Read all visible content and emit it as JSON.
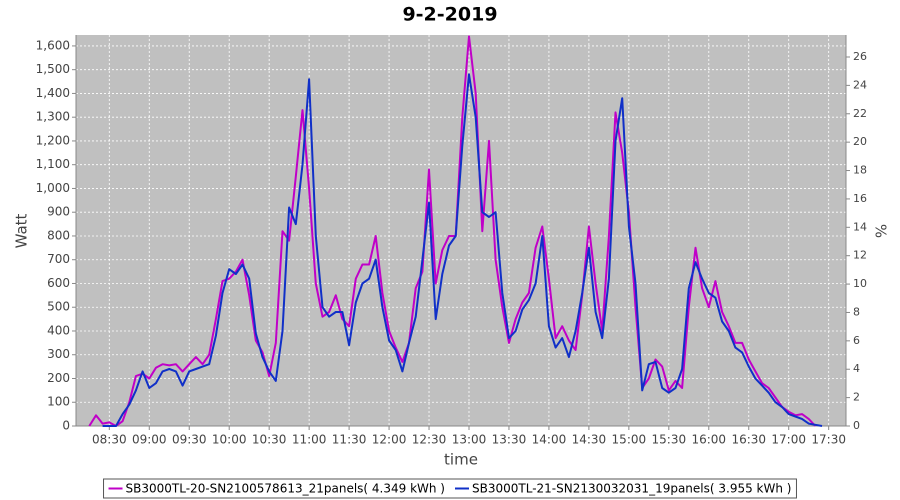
{
  "chart_data": {
    "type": "line",
    "title": "9-2-2019",
    "x_label": "time",
    "y_label": "Watt",
    "y2_label": "%",
    "xlim": [
      "08:05",
      "17:43"
    ],
    "xticks": [
      "08:30",
      "09:00",
      "09:30",
      "10:00",
      "10:30",
      "11:00",
      "11:30",
      "12:00",
      "12:30",
      "13:00",
      "13:30",
      "14:00",
      "14:30",
      "15:00",
      "15:30",
      "16:00",
      "16:30",
      "17:00",
      "17:30"
    ],
    "ylim": [
      0,
      1646
    ],
    "yticks": [
      0,
      100,
      200,
      300,
      400,
      500,
      600,
      700,
      800,
      900,
      {
        "value": 1000,
        "label": "1,000"
      },
      {
        "value": 1100,
        "label": "1,100"
      },
      {
        "value": 1200,
        "label": "1,200"
      },
      {
        "value": 1300,
        "label": "1,300"
      },
      {
        "value": 1400,
        "label": "1,400"
      },
      {
        "value": 1500,
        "label": "1,500"
      },
      {
        "value": 1600,
        "label": "1,600"
      }
    ],
    "y2lim": [
      0,
      27.55
    ],
    "y2ticks": [
      0,
      2,
      4,
      6,
      8,
      10,
      12,
      14,
      16,
      18,
      20,
      22,
      24,
      26
    ],
    "grid": true,
    "legend": "bottom",
    "series": [
      {
        "name": "SB3000TL-20-SN2100578613_21panels( 4.349 kWh )",
        "color": "#c000c8",
        "x": [
          "08:15",
          "08:20",
          "08:25",
          "08:30",
          "08:35",
          "08:40",
          "08:45",
          "08:50",
          "08:55",
          "09:00",
          "09:05",
          "09:10",
          "09:15",
          "09:20",
          "09:25",
          "09:30",
          "09:35",
          "09:40",
          "09:45",
          "09:50",
          "09:55",
          "10:00",
          "10:05",
          "10:10",
          "10:15",
          "10:20",
          "10:25",
          "10:30",
          "10:35",
          "10:40",
          "10:45",
          "10:50",
          "10:55",
          "11:00",
          "11:05",
          "11:10",
          "11:15",
          "11:20",
          "11:25",
          "11:30",
          "11:35",
          "11:40",
          "11:45",
          "11:50",
          "11:55",
          "12:00",
          "12:05",
          "12:10",
          "12:15",
          "12:20",
          "12:25",
          "12:30",
          "12:35",
          "12:40",
          "12:45",
          "12:50",
          "12:55",
          "13:00",
          "13:05",
          "13:10",
          "13:15",
          "13:20",
          "13:25",
          "13:30",
          "13:35",
          "13:40",
          "13:45",
          "13:50",
          "13:55",
          "14:00",
          "14:05",
          "14:10",
          "14:15",
          "14:20",
          "14:25",
          "14:30",
          "14:35",
          "14:40",
          "14:45",
          "14:50",
          "14:55",
          "15:00",
          "15:05",
          "15:10",
          "15:15",
          "15:20",
          "15:25",
          "15:30",
          "15:35",
          "15:40",
          "15:45",
          "15:50",
          "15:55",
          "16:00",
          "16:05",
          "16:10",
          "16:15",
          "16:20",
          "16:25",
          "16:30",
          "16:35",
          "16:40",
          "16:45",
          "16:50",
          "16:55",
          "17:00",
          "17:05",
          "17:10",
          "17:15",
          "17:20"
        ],
        "values": [
          0,
          45,
          10,
          15,
          0,
          20,
          100,
          210,
          220,
          200,
          245,
          260,
          255,
          260,
          230,
          260,
          290,
          260,
          300,
          450,
          610,
          620,
          650,
          700,
          550,
          360,
          310,
          210,
          350,
          820,
          780,
          1050,
          1330,
          1000,
          600,
          460,
          480,
          550,
          450,
          420,
          620,
          680,
          680,
          800,
          560,
          400,
          330,
          270,
          350,
          580,
          650,
          1080,
          600,
          740,
          800,
          800,
          1300,
          1640,
          1400,
          820,
          1200,
          700,
          500,
          350,
          450,
          520,
          560,
          750,
          840,
          620,
          370,
          420,
          360,
          320,
          550,
          840,
          600,
          400,
          800,
          1320,
          1150,
          900,
          500,
          160,
          200,
          280,
          250,
          150,
          190,
          160,
          500,
          750,
          580,
          500,
          610,
          480,
          420,
          350,
          350,
          280,
          230,
          180,
          160,
          120,
          80,
          60,
          45,
          50,
          30,
          0
        ]
      },
      {
        "name": "SB3000TL-21-SN2130032031_19panels( 3.955 kWh )",
        "color": "#1030c8",
        "x": [
          "08:25",
          "08:30",
          "08:35",
          "08:40",
          "08:45",
          "08:50",
          "08:55",
          "09:00",
          "09:05",
          "09:10",
          "09:15",
          "09:20",
          "09:25",
          "09:30",
          "09:35",
          "09:40",
          "09:45",
          "09:50",
          "09:55",
          "10:00",
          "10:05",
          "10:10",
          "10:15",
          "10:20",
          "10:25",
          "10:30",
          "10:35",
          "10:40",
          "10:45",
          "10:50",
          "10:55",
          "11:00",
          "11:05",
          "11:10",
          "11:15",
          "11:20",
          "11:25",
          "11:30",
          "11:35",
          "11:40",
          "11:45",
          "11:50",
          "11:55",
          "12:00",
          "12:05",
          "12:10",
          "12:15",
          "12:20",
          "12:25",
          "12:30",
          "12:35",
          "12:40",
          "12:45",
          "12:50",
          "12:55",
          "13:00",
          "13:05",
          "13:10",
          "13:15",
          "13:20",
          "13:25",
          "13:30",
          "13:35",
          "13:40",
          "13:45",
          "13:50",
          "13:55",
          "14:00",
          "14:05",
          "14:10",
          "14:15",
          "14:20",
          "14:25",
          "14:30",
          "14:35",
          "14:40",
          "14:45",
          "14:50",
          "14:55",
          "15:00",
          "15:05",
          "15:10",
          "15:15",
          "15:20",
          "15:25",
          "15:30",
          "15:35",
          "15:40",
          "15:45",
          "15:50",
          "15:55",
          "16:00",
          "16:05",
          "16:10",
          "16:15",
          "16:20",
          "16:25",
          "16:30",
          "16:35",
          "16:40",
          "16:45",
          "16:50",
          "16:55",
          "17:00",
          "17:05",
          "17:10",
          "17:15",
          "17:20",
          "17:25"
        ],
        "values": [
          0,
          0,
          0,
          50,
          90,
          150,
          230,
          160,
          180,
          230,
          240,
          230,
          170,
          230,
          240,
          250,
          260,
          380,
          560,
          660,
          640,
          680,
          620,
          390,
          290,
          230,
          190,
          400,
          920,
          850,
          1100,
          1460,
          800,
          500,
          460,
          480,
          480,
          340,
          520,
          600,
          620,
          700,
          500,
          360,
          320,
          230,
          350,
          460,
          700,
          940,
          450,
          640,
          760,
          800,
          1180,
          1480,
          1300,
          900,
          880,
          900,
          560,
          370,
          400,
          490,
          530,
          600,
          800,
          420,
          330,
          370,
          290,
          400,
          560,
          750,
          480,
          370,
          620,
          1200,
          1380,
          840,
          600,
          150,
          260,
          270,
          160,
          140,
          160,
          240,
          580,
          690,
          620,
          560,
          540,
          440,
          400,
          330,
          310,
          250,
          200,
          170,
          140,
          100,
          80,
          50,
          40,
          30,
          10,
          5,
          0
        ]
      }
    ]
  }
}
